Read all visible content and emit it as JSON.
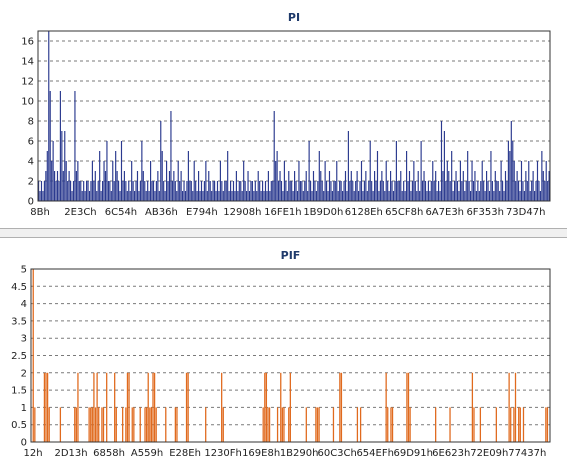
{
  "chart_data": [
    {
      "type": "bar",
      "title": "PI",
      "xlabel": "",
      "ylabel": "",
      "ylim": [
        0,
        17
      ],
      "yticks": [
        0,
        2,
        4,
        6,
        8,
        10,
        12,
        14,
        16
      ],
      "grid": true,
      "x_tick_labels": [
        "8Bh",
        "2E3Ch",
        "6C54h",
        "AB36h",
        "E794h",
        "12908h",
        "16FE1h",
        "1B9D0h",
        "6128Eh",
        "65CF8h",
        "6A7E3h",
        "6F353h",
        "73D47h"
      ],
      "colors": {
        "bar": "#2b3a8f"
      },
      "values": [
        2,
        1,
        2,
        1,
        2,
        3,
        5,
        17,
        11,
        4,
        6,
        3,
        2,
        3,
        2,
        11,
        7,
        3,
        7,
        4,
        2,
        3,
        2,
        1,
        2,
        11,
        3,
        4,
        2,
        2,
        1,
        2,
        1,
        2,
        2,
        1,
        2,
        4,
        2,
        3,
        1,
        2,
        5,
        1,
        2,
        4,
        3,
        6,
        2,
        2,
        1,
        4,
        2,
        5,
        3,
        2,
        1,
        6,
        2,
        3,
        2,
        1,
        2,
        1,
        4,
        2,
        1,
        2,
        3,
        1,
        2,
        6,
        3,
        2,
        1,
        2,
        1,
        4,
        2,
        2,
        1,
        2,
        3,
        1,
        8,
        5,
        2,
        1,
        4,
        2,
        3,
        9,
        2,
        3,
        2,
        1,
        4,
        2,
        3,
        1,
        2,
        1,
        2,
        5,
        2,
        2,
        1,
        4,
        2,
        1,
        3,
        1,
        2,
        1,
        2,
        4,
        1,
        3,
        2,
        1,
        2,
        2,
        1,
        2,
        1,
        4,
        2,
        1,
        2,
        2,
        5,
        1,
        2,
        1,
        2,
        1,
        3,
        1,
        2,
        2,
        1,
        4,
        2,
        1,
        3,
        1,
        2,
        2,
        1,
        2,
        1,
        3,
        2,
        1,
        2,
        1,
        2,
        1,
        3,
        1,
        2,
        2,
        9,
        4,
        5,
        2,
        3,
        2,
        1,
        4,
        2,
        1,
        3,
        2,
        2,
        1,
        3,
        2,
        1,
        4,
        2,
        2,
        1,
        2,
        3,
        1,
        6,
        2,
        1,
        3,
        2,
        1,
        2,
        5,
        3,
        2,
        1,
        4,
        2,
        1,
        3,
        2,
        1,
        2,
        2,
        4,
        1,
        2,
        2,
        1,
        2,
        3,
        1,
        7,
        2,
        3,
        2,
        1,
        2,
        3,
        1,
        2,
        4,
        1,
        2,
        3,
        1,
        2,
        6,
        2,
        1,
        3,
        2,
        5,
        1,
        2,
        3,
        2,
        1,
        4,
        2,
        1,
        3,
        2,
        1,
        2,
        6,
        2,
        2,
        3,
        1,
        2,
        1,
        5,
        2,
        3,
        1,
        2,
        4,
        2,
        1,
        3,
        1,
        6,
        2,
        3,
        2,
        1,
        2,
        1,
        2,
        4,
        2,
        3,
        1,
        2,
        1,
        8,
        3,
        7,
        2,
        4,
        3,
        2,
        5,
        1,
        2,
        3,
        2,
        1,
        4,
        2,
        3,
        1,
        2,
        5,
        2,
        1,
        4,
        2,
        3,
        1,
        2,
        1,
        2,
        4,
        2,
        1,
        3,
        2,
        1,
        5,
        2,
        1,
        3,
        2,
        2,
        1,
        4,
        2,
        1,
        3,
        2,
        6,
        5,
        8,
        6,
        4,
        2,
        3,
        2,
        1,
        4,
        2,
        1,
        3,
        2,
        4,
        1,
        2,
        3,
        1,
        2,
        4,
        2,
        1,
        5,
        3,
        2,
        4,
        2,
        3
      ]
    },
    {
      "type": "bar",
      "title": "PIF",
      "xlabel": "",
      "ylabel": "",
      "ylim": [
        0,
        5
      ],
      "yticks": [
        0,
        0.5,
        1,
        1.5,
        2,
        2.5,
        3,
        3.5,
        4,
        4.5,
        5
      ],
      "grid": true,
      "x_tick_labels": [
        "12h",
        "2D13h",
        "6858h",
        "A559h",
        "E28Eh",
        "1230Fh",
        "169E8h",
        "1B290h",
        "60C3Ch",
        "654EFh",
        "69D91h",
        "6E623h",
        "72E09h",
        "77437h"
      ],
      "colors": {
        "bar": "#e06a1e",
        "accent": "#3a8a3a"
      },
      "values": [
        0,
        5,
        1,
        0,
        0,
        0,
        0,
        0,
        2,
        2,
        2,
        1,
        0,
        0,
        0,
        0,
        0,
        0,
        1,
        0,
        0,
        0,
        0,
        0,
        0,
        0,
        0,
        1,
        1,
        2,
        0,
        0,
        0,
        0,
        0,
        0,
        1,
        1,
        1,
        2,
        1,
        2,
        1,
        0,
        1,
        1,
        0,
        2,
        0,
        0,
        0,
        0,
        2,
        1,
        0,
        0,
        0,
        1,
        0,
        1,
        2,
        2,
        0,
        1,
        1,
        0,
        0,
        0,
        1,
        0,
        0,
        1,
        1,
        2,
        1,
        1,
        2,
        2,
        1,
        0,
        0,
        0,
        0,
        0,
        1,
        0,
        0,
        0,
        0,
        0,
        1,
        1,
        0,
        0,
        0,
        0,
        0,
        2,
        2,
        0,
        0,
        0,
        0,
        0,
        0,
        0,
        0,
        0,
        0,
        1,
        0,
        0,
        0,
        0,
        0,
        0,
        0,
        0,
        0,
        2,
        1,
        0,
        0,
        0,
        0,
        0,
        0,
        0,
        0,
        0,
        0,
        0,
        0,
        0,
        0,
        0,
        0,
        0,
        0,
        0,
        0,
        0,
        0,
        0,
        0,
        1,
        2,
        2,
        1,
        1,
        0,
        0,
        0,
        0,
        1,
        0,
        2,
        1,
        1,
        0,
        0,
        1,
        2,
        0,
        0,
        0,
        0,
        0,
        0,
        0,
        0,
        0,
        1,
        0,
        0,
        0,
        0,
        0,
        1,
        1,
        1,
        0,
        0,
        0,
        0,
        0,
        0,
        0,
        0,
        1,
        0,
        0,
        0,
        2,
        2,
        0,
        0,
        0,
        0,
        0,
        0,
        0,
        0,
        0,
        1,
        0,
        1,
        0,
        0,
        0,
        0,
        0,
        0,
        0,
        0,
        0,
        0,
        0,
        0,
        0,
        0,
        0,
        2,
        1,
        0,
        1,
        1,
        0,
        0,
        0,
        0,
        0,
        0,
        0,
        0,
        2,
        2,
        1,
        0,
        0,
        0,
        0,
        0,
        0,
        0,
        0,
        0,
        0,
        0,
        0,
        0,
        0,
        0,
        1,
        0,
        0,
        0,
        0,
        0,
        0,
        0,
        0,
        1,
        0,
        0,
        0,
        0,
        0,
        0,
        0,
        0,
        0,
        0,
        0,
        0,
        0,
        2,
        1,
        0,
        0,
        0,
        1,
        0,
        0,
        0,
        0,
        0,
        0,
        0,
        0,
        0,
        1,
        0,
        0,
        0,
        0,
        0,
        0,
        0,
        2,
        1,
        0,
        1,
        2,
        0,
        1,
        1,
        0,
        1,
        0,
        0,
        0,
        0,
        0,
        0,
        0,
        0,
        0,
        0,
        0,
        0,
        0,
        1,
        1,
        0
      ],
      "accent_indices": [
        170
      ]
    }
  ]
}
